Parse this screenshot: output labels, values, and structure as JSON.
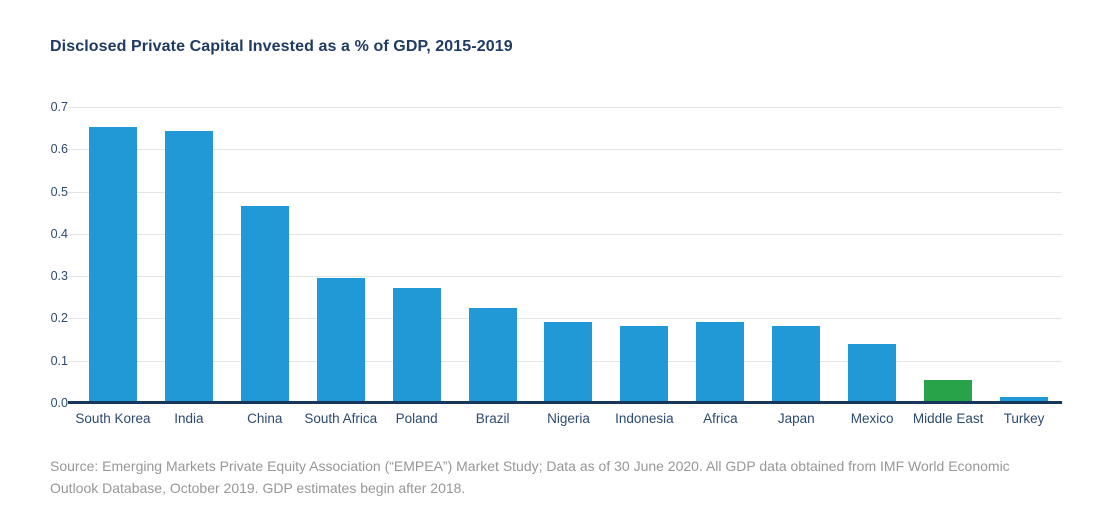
{
  "title": "Disclosed Private Capital Invested as a % of GDP, 2015-2019",
  "source": "Source: Emerging Markets Private Equity Association (“EMPEA”) Market Study; Data as of 30 June 2020. All GDP data obtained from IMF World Economic Outlook Database, October 2019. GDP estimates begin after 2018.",
  "colors": {
    "bar_blue": "#2199D6",
    "bar_green": "#28A349",
    "title_navy": "#1F3A63",
    "axis_label_navy": "#2C4A70",
    "baseline_navy": "#16365C",
    "gridline_gray": "#E4E4E4",
    "source_gray": "#979797",
    "background": "#FFFFFF"
  },
  "chart_data": {
    "type": "bar",
    "title": "Disclosed Private Capital Invested as a % of GDP, 2015-2019",
    "categories": [
      "South Korea",
      "India",
      "China",
      "South Africa",
      "Poland",
      "Brazil",
      "Nigeria",
      "Indonesia",
      "Africa",
      "Japan",
      "Mexico",
      "Middle East",
      "Turkey"
    ],
    "values": [
      0.653,
      0.643,
      0.465,
      0.295,
      0.272,
      0.225,
      0.192,
      0.183,
      0.192,
      0.183,
      0.14,
      0.055,
      0.015
    ],
    "bar_color": "#2199D6",
    "highlight_category": "Middle East",
    "highlight_color": "#28A349",
    "xlabel": "",
    "ylabel": "",
    "ylim": [
      0,
      0.7
    ],
    "yticks": [
      "0.0",
      "0.1",
      "0.2",
      "0.3",
      "0.4",
      "0.5",
      "0.6",
      "0.7"
    ],
    "grid": true,
    "legend": false
  }
}
